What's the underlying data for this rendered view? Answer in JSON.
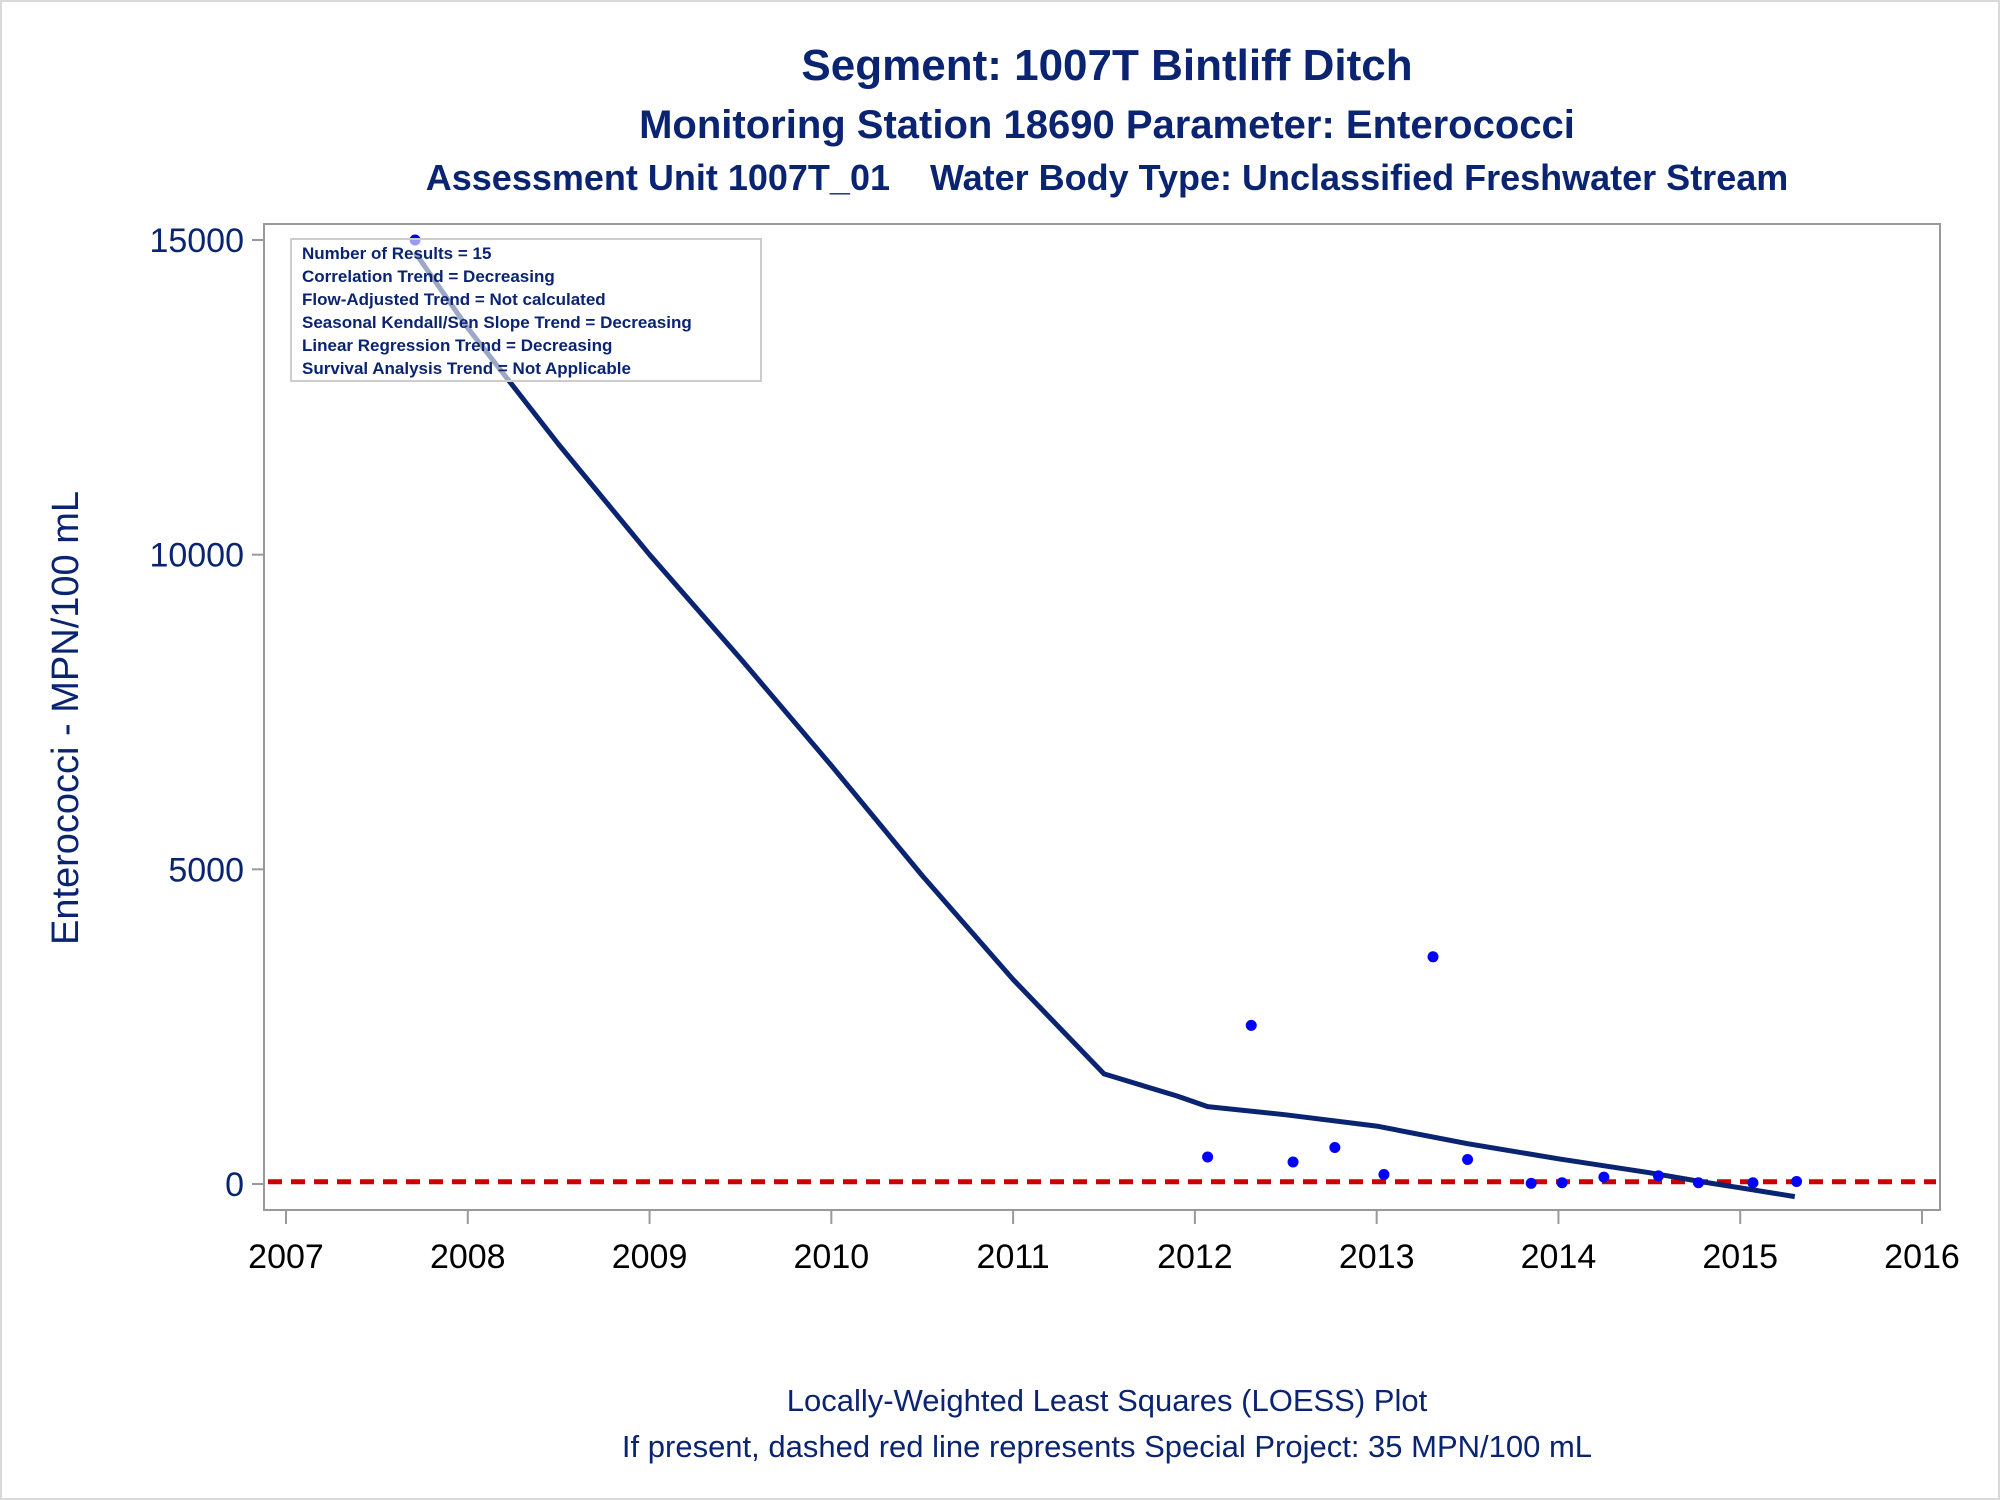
{
  "chart_data": {
    "type": "scatter",
    "title": "Segment: 1007T  Bintliff Ditch",
    "subtitle": "Monitoring Station 18690 Parameter: Enterococci",
    "subtitle2": "Assessment Unit 1007T_01    Water Body Type: Unclassified Freshwater Stream",
    "ylabel": "Enterococci - MPN/100 mL",
    "xlim": [
      2007,
      2016
    ],
    "ylim": [
      -400,
      15300
    ],
    "x_ticks": [
      "2007",
      "2008",
      "2009",
      "2010",
      "2011",
      "2012",
      "2013",
      "2014",
      "2015",
      "2016"
    ],
    "y_ticks": [
      "0",
      "5000",
      "10000",
      "15000"
    ],
    "grid": false,
    "stats_box": [
      "Number of Results = 15",
      "Correlation Trend = Decreasing",
      "Flow-Adjusted Trend = Not calculated",
      "Seasonal Kendall/Sen Slope Trend = Decreasing",
      "Linear Regression Trend = Decreasing",
      "Survival Analysis Trend = Not Applicable"
    ],
    "points": [
      {
        "x": 2007.71,
        "y": 15000
      },
      {
        "x": 2012.07,
        "y": 430
      },
      {
        "x": 2012.31,
        "y": 2520
      },
      {
        "x": 2012.54,
        "y": 350
      },
      {
        "x": 2012.77,
        "y": 580
      },
      {
        "x": 2013.04,
        "y": 150
      },
      {
        "x": 2013.31,
        "y": 3610
      },
      {
        "x": 2013.5,
        "y": 390
      },
      {
        "x": 2013.85,
        "y": 10
      },
      {
        "x": 2014.02,
        "y": 20
      },
      {
        "x": 2014.25,
        "y": 110
      },
      {
        "x": 2014.55,
        "y": 130
      },
      {
        "x": 2014.77,
        "y": 20
      },
      {
        "x": 2015.07,
        "y": 20
      },
      {
        "x": 2015.31,
        "y": 40
      }
    ],
    "loess": [
      {
        "x": 2007.71,
        "y": 14800
      },
      {
        "x": 2008.0,
        "y": 13600
      },
      {
        "x": 2008.5,
        "y": 11750
      },
      {
        "x": 2009.0,
        "y": 10000
      },
      {
        "x": 2009.5,
        "y": 8350
      },
      {
        "x": 2010.0,
        "y": 6650
      },
      {
        "x": 2010.5,
        "y": 4900
      },
      {
        "x": 2011.0,
        "y": 3250
      },
      {
        "x": 2011.5,
        "y": 1750
      },
      {
        "x": 2011.9,
        "y": 1400
      },
      {
        "x": 2012.07,
        "y": 1230
      },
      {
        "x": 2012.5,
        "y": 1100
      },
      {
        "x": 2013.0,
        "y": 920
      },
      {
        "x": 2013.5,
        "y": 640
      },
      {
        "x": 2014.0,
        "y": 400
      },
      {
        "x": 2014.5,
        "y": 180
      },
      {
        "x": 2014.8,
        "y": 30
      },
      {
        "x": 2015.0,
        "y": -60
      },
      {
        "x": 2015.3,
        "y": -200
      }
    ],
    "reference_line": {
      "y": 35,
      "color": "#cc0000",
      "style": "dashed"
    },
    "footnote1": "Locally-Weighted Least Squares (LOESS) Plot",
    "footnote2": "If present, dashed red line represents Special Project: 35 MPN/100 mL",
    "colors": {
      "text": "#0a2472",
      "points": "#0000ff",
      "loess": "#0a2472",
      "axis": "#999999"
    }
  }
}
